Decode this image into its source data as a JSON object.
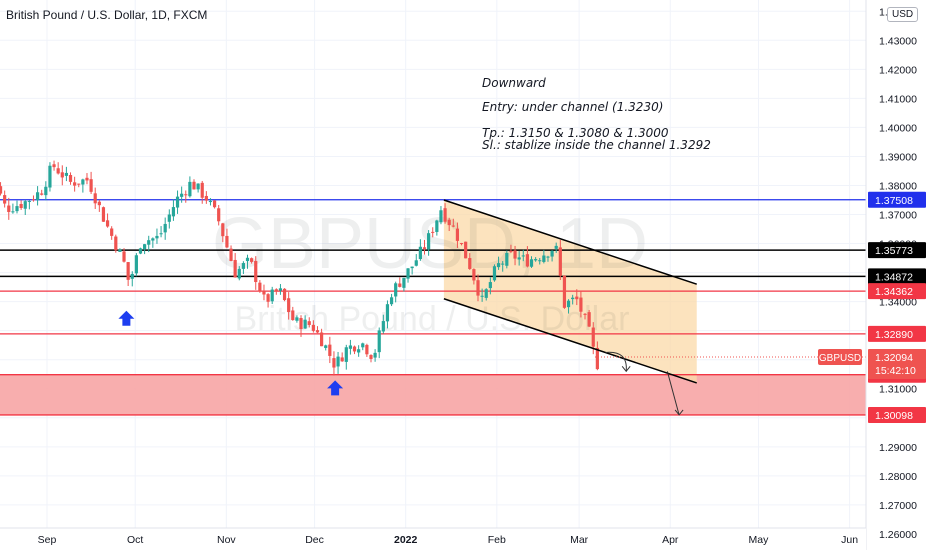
{
  "header": {
    "title": "British Pound / U.S. Dollar, 1D, FXCM",
    "currency": "USD"
  },
  "watermark": {
    "symbol": "GBPUSD, 1D",
    "name": "British Pound / U.S. Dollar"
  },
  "annotation": {
    "line1": "Downward",
    "line2": "Entry: under channel (1.3230)",
    "line3": "Tp.: 1.3150 & 1.3080 & 1.3000",
    "line4": "Sl.: stablize inside the channel 1.3292"
  },
  "chart_data": {
    "type": "candlestick",
    "symbol": "GBPUSD",
    "timeframe": "1D",
    "ylim": [
      1.2555,
      1.4425
    ],
    "y_ticks": [
      "1.26000",
      "1.27000",
      "1.28000",
      "1.29000",
      "1.30000",
      "1.31000",
      "1.32000",
      "1.33000",
      "1.34000",
      "1.35000",
      "1.36000",
      "1.37000",
      "1.38000",
      "1.39000",
      "1.40000",
      "1.41000",
      "1.42000",
      "1.43000",
      "1.44000"
    ],
    "x_labels": [
      {
        "label": "Sep",
        "date": "2021-09-01"
      },
      {
        "label": "Oct",
        "date": "2021-10-01"
      },
      {
        "label": "Nov",
        "date": "2021-11-01"
      },
      {
        "label": "Dec",
        "date": "2021-12-01"
      },
      {
        "label": "2022",
        "date": "2022-01-01"
      },
      {
        "label": "Feb",
        "date": "2022-02-01"
      },
      {
        "label": "Mar",
        "date": "2022-03-01"
      },
      {
        "label": "Apr",
        "date": "2022-04-01"
      },
      {
        "label": "May",
        "date": "2022-05-01"
      },
      {
        "label": "Jun",
        "date": "2022-06-01"
      }
    ],
    "close_path": [
      [
        "2021-08-12",
        1.387
      ],
      [
        "2021-08-18",
        1.372
      ],
      [
        "2021-08-24",
        1.374
      ],
      [
        "2021-08-30",
        1.378
      ],
      [
        "2021-09-03",
        1.387
      ],
      [
        "2021-09-09",
        1.381
      ],
      [
        "2021-09-15",
        1.382
      ],
      [
        "2021-09-21",
        1.367
      ],
      [
        "2021-09-27",
        1.354
      ],
      [
        "2021-09-29",
        1.346
      ],
      [
        "2021-10-03",
        1.361
      ],
      [
        "2021-10-09",
        1.362
      ],
      [
        "2021-10-15",
        1.375
      ],
      [
        "2021-10-20",
        1.381
      ],
      [
        "2021-10-25",
        1.376
      ],
      [
        "2021-10-29",
        1.369
      ],
      [
        "2021-11-04",
        1.35
      ],
      [
        "2021-11-09",
        1.354
      ],
      [
        "2021-11-14",
        1.34
      ],
      [
        "2021-11-19",
        1.344
      ],
      [
        "2021-11-24",
        1.333
      ],
      [
        "2021-11-30",
        1.332
      ],
      [
        "2021-12-04",
        1.326
      ],
      [
        "2021-12-08",
        1.318
      ],
      [
        "2021-12-12",
        1.324
      ],
      [
        "2021-12-17",
        1.326
      ],
      [
        "2021-12-21",
        1.321
      ],
      [
        "2021-12-27",
        1.343
      ],
      [
        "2022-01-03",
        1.352
      ],
      [
        "2022-01-08",
        1.36
      ],
      [
        "2022-01-13",
        1.372
      ],
      [
        "2022-01-18",
        1.364
      ],
      [
        "2022-01-23",
        1.352
      ],
      [
        "2022-01-27",
        1.34
      ],
      [
        "2022-02-01",
        1.352
      ],
      [
        "2022-02-06",
        1.356
      ],
      [
        "2022-02-11",
        1.354
      ],
      [
        "2022-02-16",
        1.356
      ],
      [
        "2022-02-21",
        1.359
      ],
      [
        "2022-02-24",
        1.339
      ],
      [
        "2022-02-28",
        1.341
      ],
      [
        "2022-03-04",
        1.331
      ],
      [
        "2022-03-07",
        1.318
      ],
      [
        "2022-03-08",
        1.3209
      ]
    ],
    "horizontal_lines": [
      {
        "label": "1.37508",
        "value": 1.37508,
        "color": "#2130ec"
      },
      {
        "label": "1.35773",
        "value": 1.35773,
        "color": "#000000"
      },
      {
        "label": "1.34872",
        "value": 1.34872,
        "color": "#000000"
      },
      {
        "label": "1.34362",
        "value": 1.34362,
        "color": "#f23645"
      },
      {
        "label": "1.32890",
        "value": 1.3289,
        "color": "#f23645"
      },
      {
        "label": "1.31484",
        "value": 1.31484,
        "color": "#f23645"
      },
      {
        "label": "1.30098",
        "value": 1.30098,
        "color": "#f23645"
      }
    ],
    "current_price": {
      "symbol": "GBPUSD",
      "value": "1.32094",
      "countdown": "15:42:10",
      "color": "#ef5350"
    },
    "channel": {
      "upper": [
        [
          "2022-01-14",
          1.375
        ],
        [
          "2022-04-10",
          1.346
        ]
      ],
      "lower": [
        [
          "2022-01-14",
          1.341
        ],
        [
          "2022-04-10",
          1.312
        ]
      ],
      "fill_color": "#fbd9a8"
    },
    "target_zone": {
      "from": 1.30098,
      "to": 1.31484,
      "color": "#f7a5a5"
    },
    "markers": [
      {
        "type": "up-arrow",
        "date": "2021-09-28",
        "value": 1.341,
        "color": "#1e3ef0"
      },
      {
        "type": "up-arrow",
        "date": "2021-12-08",
        "value": 1.317,
        "color": "#1e3ef0"
      }
    ],
    "projection_arrows": [
      {
        "from": [
          "2022-03-10",
          1.3225
        ],
        "to": [
          "2022-03-17",
          1.316
        ]
      },
      {
        "from": [
          "2022-03-31",
          1.316
        ],
        "to": [
          "2022-04-04",
          1.301
        ]
      }
    ],
    "up_color": "#26a69a",
    "down_color": "#ef5350"
  }
}
